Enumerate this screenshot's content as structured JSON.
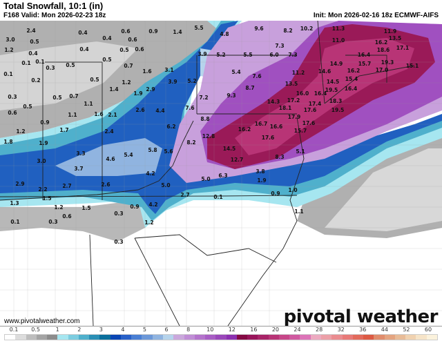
{
  "header": {
    "title": "Total Snowfall, 10:1 (in)",
    "valid": "F168 Valid: Mon 2026-02-23 18z",
    "init": "Init: Mon 2026-02-16 18z ECMWF-AIFS"
  },
  "footer": {
    "url": "www.pivotalweather.com",
    "logo": "pivotal weather"
  },
  "legend": {
    "ticks": [
      "0.1",
      "0.5",
      "1",
      "2",
      "3",
      "4",
      "5",
      "6",
      "8",
      "10",
      "12",
      "16",
      "20",
      "24",
      "28",
      "32",
      "36",
      "44",
      "52",
      "60"
    ],
    "colors": [
      "#ffffff",
      "#dcdcdc",
      "#bdbdbd",
      "#a4a4a4",
      "#8c8c8c",
      "#a6e6f0",
      "#7dcde0",
      "#4fb0cc",
      "#2a8fb5",
      "#0a6f9c",
      "#0a46b4",
      "#2860c8",
      "#4a7fd4",
      "#6c98d8",
      "#90b4e0",
      "#b6d4ec",
      "#caa8dc",
      "#c08ed6",
      "#b474cc",
      "#a85ec4",
      "#9a48ba",
      "#8c30b0",
      "#840a44",
      "#98145a",
      "#a82468",
      "#b83476",
      "#c64688",
      "#d05aa0",
      "#dc74b8",
      "#ecaac0",
      "#eca0a8",
      "#ea8c90",
      "#e87a78",
      "#e26a5c",
      "#dc5a44",
      "#e08c6c",
      "#e4a480",
      "#e8bc98",
      "#f0d2b0",
      "#f6e4c8",
      "#fbf2dc"
    ]
  },
  "map": {
    "colors": {
      "gray_dark": "#8e8e8e",
      "gray": "#b0b0b0",
      "gray_light": "#d4d4d4",
      "cyan": "#a6e6f0",
      "teal": "#4fb0cc",
      "blue": "#2060c0",
      "light_blue": "#b6d4ec",
      "lavender": "#c8a0dc",
      "purple": "#a050c0",
      "maroon": "#9a1a58",
      "pink": "#b83476"
    },
    "labels": [
      "2.4",
      "3.0",
      "0.4",
      "0.6",
      "0.9",
      "1.4",
      "5.5",
      "0.5",
      "0.4",
      "0.6",
      "1.2",
      "0.4",
      "0.4",
      "0.5",
      "0.6",
      "0.1",
      "0.1",
      "0.3",
      "0.5",
      "0.5",
      "0.7",
      "1.6",
      "3.1",
      "0.1",
      "0.2",
      "0.5",
      "3.9",
      "5.2",
      "1.2",
      "1.4",
      "2.9",
      "0.3",
      "0.7",
      "0.5",
      "1.9",
      "7.2",
      "0.5",
      "1.1",
      "2.6",
      "4.4",
      "7.6",
      "0.6",
      "1.1",
      "1.6",
      "2.1",
      "8.8",
      "0.9",
      "4.8",
      "9.6",
      "8.2",
      "10.2",
      "11.3",
      "11.9",
      "7.3",
      "11.0",
      "16.2",
      "13.5",
      "18.6",
      "17.1",
      "3.9",
      "5.2",
      "5.5",
      "6.0",
      "7.3",
      "16.4",
      "14.9",
      "15.7",
      "19.3",
      "15.1",
      "5.4",
      "7.6",
      "11.2",
      "14.6",
      "16.2",
      "17.0",
      "15.4",
      "14.5",
      "13.5",
      "8.7",
      "16.4",
      "19.5",
      "9.3",
      "16.0",
      "16.4",
      "14.3",
      "17.2",
      "18.3",
      "17.4",
      "18.1",
      "17.6",
      "19.5",
      "17.9",
      "17.6",
      "16.7",
      "16.2",
      "16.6",
      "15.7",
      "12.8",
      "17.6",
      "14.5",
      "5.1",
      "12.7",
      "8.3",
      "3.8",
      "6.3",
      "5.0",
      "1.9",
      "1.0",
      "0.9",
      "0.1",
      "1.1",
      "1.2",
      "1.7",
      "2.4",
      "6.2",
      "1.8",
      "1.9",
      "3.3",
      "4.6",
      "5.4",
      "5.8",
      "5.6",
      "8.2",
      "3.0",
      "3.7",
      "4.2",
      "2.9",
      "2.2",
      "2.7",
      "2.6",
      "5.0",
      "2.7",
      "1.3",
      "1.5",
      "1.2",
      "1.5",
      "0.9",
      "4.2",
      "0.6",
      "0.3",
      "0.1",
      "0.3",
      "1.2",
      "0.3"
    ]
  }
}
